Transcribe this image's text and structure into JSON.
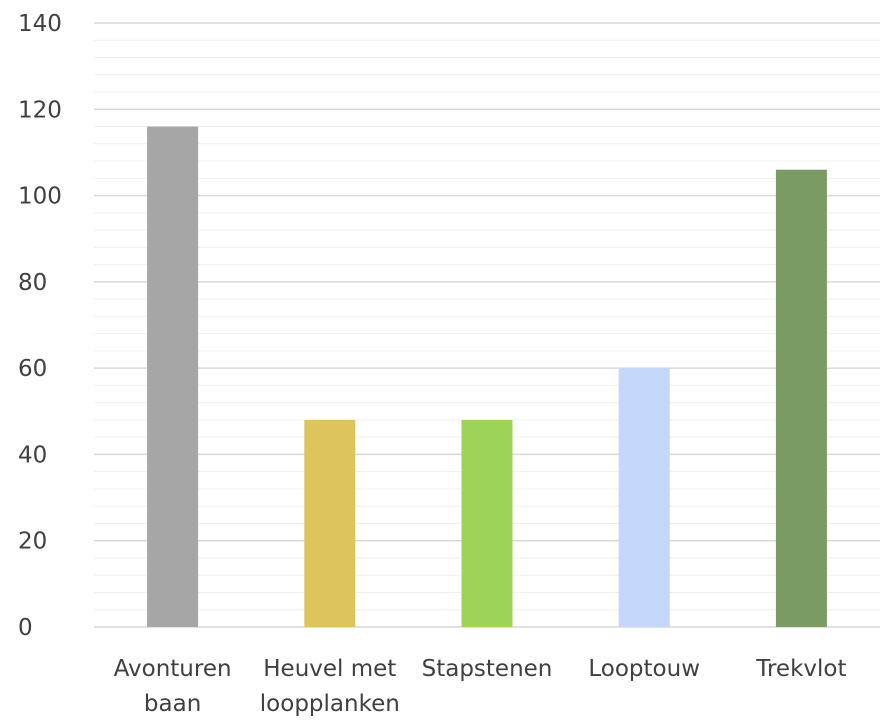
{
  "chart_data": {
    "type": "bar",
    "categories": [
      [
        "Avonturen",
        "baan"
      ],
      [
        "Heuvel met",
        "loopplanken"
      ],
      [
        "Stapstenen"
      ],
      [
        "Looptouw"
      ],
      [
        "Trekvlot"
      ]
    ],
    "values": [
      116,
      48,
      48,
      60,
      106
    ],
    "bar_colors": [
      "#a6a6a6",
      "#dec45c",
      "#9dd356",
      "#c5d6fb",
      "#7a9c62"
    ],
    "ylim": [
      0,
      140
    ],
    "y_ticks": [
      0,
      20,
      40,
      60,
      80,
      100,
      120,
      140
    ],
    "y_minor_step": 4,
    "grid": true,
    "title": "",
    "xlabel": "",
    "ylabel": ""
  }
}
